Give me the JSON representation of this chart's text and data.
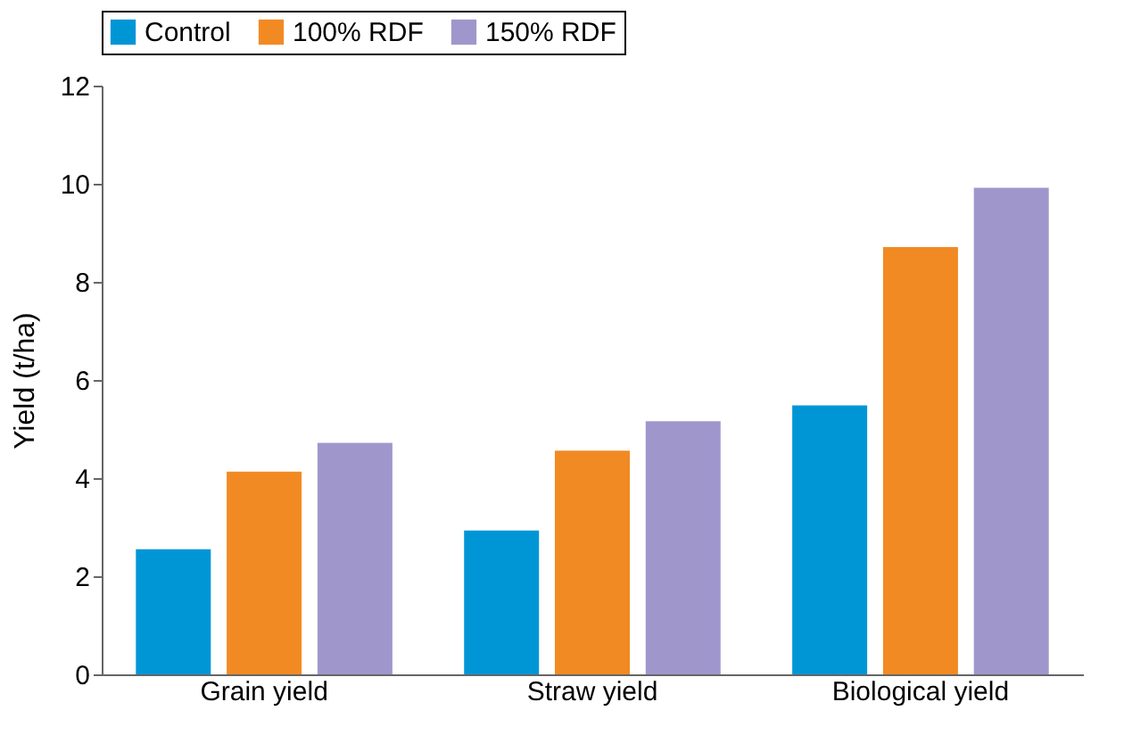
{
  "chart_data": {
    "type": "bar",
    "ylabel": "Yield (t/ha)",
    "categories": [
      "Grain yield",
      "Straw yield",
      "Biological yield"
    ],
    "series": [
      {
        "name": "Control",
        "color": "#0096d6",
        "values": [
          2.55,
          2.93,
          5.48
        ]
      },
      {
        "name": "100% RDF",
        "color": "#f28a24",
        "values": [
          4.13,
          4.56,
          8.71
        ]
      },
      {
        "name": "150% RDF",
        "color": "#9f97cc",
        "values": [
          4.72,
          5.16,
          9.92
        ]
      }
    ],
    "ylim": [
      0,
      12
    ],
    "yticks": [
      0,
      2,
      4,
      6,
      8,
      10,
      12
    ],
    "grid": false,
    "legend": "top"
  }
}
